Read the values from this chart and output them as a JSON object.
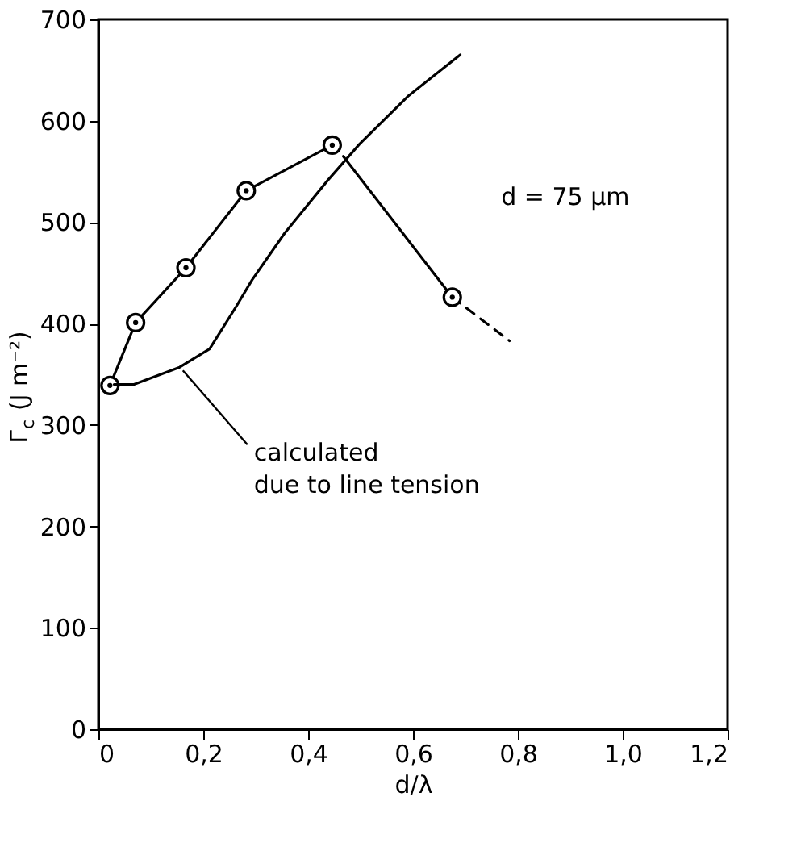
{
  "chart_data": {
    "type": "line",
    "xlabel": "d/λ",
    "ylabel": "Γ$_{c}$ (J m⁻²)",
    "xlim": [
      0,
      1.2
    ],
    "ylim": [
      0,
      700
    ],
    "xticks": [
      0,
      {
        "value": 0.2,
        "label": "0,2"
      },
      {
        "value": 0.4,
        "label": "0,4"
      },
      {
        "value": 0.6,
        "label": "0,6"
      },
      {
        "value": 0.8,
        "label": "0,8"
      },
      {
        "value": 1.0,
        "label": "1,0"
      },
      {
        "value": 1.2,
        "label": "1,2"
      }
    ],
    "yticks": [
      0,
      100,
      200,
      300,
      400,
      500,
      600,
      700
    ],
    "grid": false,
    "series": [
      {
        "marker": "circle",
        "color": "#000000",
        "x": [
          0.022,
          0.071,
          0.167,
          0.282,
          0.446
        ],
        "values": [
          339,
          401,
          455,
          531,
          576
        ]
      },
      {
        "color": "#000000",
        "x": [
          0.467,
          0.675
        ],
        "values": [
          565,
          426
        ]
      },
      {
        "line_style": "dashed",
        "color": "#000000",
        "x": [
          0.675,
          0.784
        ],
        "values": [
          426,
          383
        ]
      },
      {
        "type": "scatter",
        "marker": "circle",
        "color": "#000000",
        "x": [
          0.675
        ],
        "values": [
          426
        ]
      },
      {
        "color": "#000000",
        "x": [
          0.03,
          0.068,
          0.155,
          0.212,
          0.263,
          0.293,
          0.355,
          0.437,
          0.498,
          0.59,
          0.69
        ],
        "values": [
          340,
          340,
          357,
          375,
          417,
          443,
          489,
          541,
          577,
          624,
          665
        ]
      }
    ],
    "annotations": [
      {
        "text": "calculated\ndue to line tension",
        "x": 0.155,
        "y": 357
      },
      "d = 75 μm"
    ]
  }
}
